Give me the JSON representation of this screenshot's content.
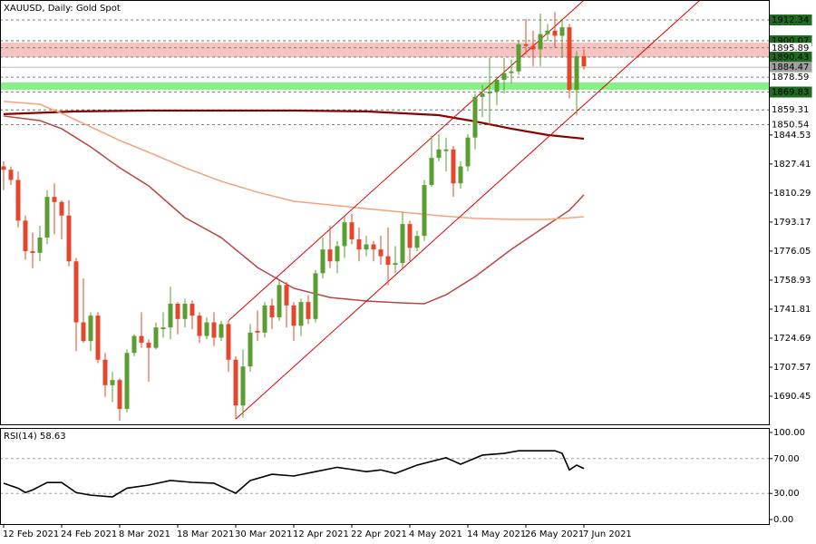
{
  "chart_data": [
    {
      "type": "candlestick",
      "title": "XAUUSD, Daily:  Gold Spot",
      "categories": [
        "12 Feb 2021",
        null,
        null,
        null,
        null,
        null,
        null,
        null,
        "24 Feb 2021",
        null,
        null,
        null,
        null,
        null,
        null,
        null,
        "8 Mar 2021",
        null,
        null,
        null,
        null,
        null,
        null,
        null,
        "18 Mar 2021",
        null,
        null,
        null,
        null,
        null,
        null,
        null,
        "30 Mar 2021",
        null,
        null,
        null,
        null,
        null,
        null,
        null,
        "12 Apr 2021",
        null,
        null,
        null,
        null,
        null,
        null,
        null,
        "22 Apr 2021",
        null,
        null,
        null,
        null,
        null,
        null,
        null,
        "4 May 2021",
        null,
        null,
        null,
        null,
        null,
        null,
        null,
        "14 May 2021",
        null,
        null,
        null,
        null,
        null,
        null,
        null,
        "26 May 2021",
        null,
        null,
        null,
        null,
        null,
        null,
        null,
        "7 Jun 2021"
      ],
      "open": [
        1826,
        1824,
        1818,
        1794,
        1776,
        1775,
        1784,
        1808,
        1805,
        1797,
        1770,
        1734,
        1723,
        1738,
        1712,
        1697,
        1700,
        1683,
        1716,
        1726,
        1722,
        1719,
        1730,
        1731,
        1745,
        1736,
        1745,
        1738,
        1726,
        1734,
        1725,
        1733,
        1712,
        1685,
        1708,
        1729,
        1728,
        1744,
        1737,
        1756,
        1744,
        1732,
        1746,
        1736,
        1763,
        1777,
        1770,
        1779,
        1793,
        1783,
        1777,
        1780,
        1777,
        1773,
        1768,
        1769,
        1792,
        1778,
        1785,
        1815,
        1831,
        1835,
        1836,
        1816,
        1826,
        1843,
        1867,
        1869,
        1870,
        1877,
        1881,
        1882,
        1898,
        1897,
        1895,
        1904,
        1906,
        1903,
        1908,
        1871,
        1891
      ],
      "high": [
        1829,
        1826,
        1823,
        1797,
        1787,
        1791,
        1812,
        1816,
        1806,
        1806,
        1772,
        1760,
        1740,
        1740,
        1716,
        1705,
        1701,
        1718,
        1727,
        1740,
        1724,
        1734,
        1740,
        1755,
        1746,
        1748,
        1747,
        1740,
        1737,
        1740,
        1735,
        1735,
        1714,
        1718,
        1733,
        1741,
        1746,
        1748,
        1759,
        1758,
        1746,
        1748,
        1750,
        1765,
        1784,
        1791,
        1782,
        1797,
        1798,
        1790,
        1785,
        1782,
        1785,
        1790,
        1779,
        1799,
        1794,
        1788,
        1818,
        1844,
        1845,
        1843,
        1838,
        1829,
        1845,
        1869,
        1874,
        1890,
        1879,
        1890,
        1889,
        1900,
        1913,
        1906,
        1916,
        1910,
        1917,
        1913,
        1910,
        1894,
        1895
      ],
      "low": [
        1812,
        1815,
        1790,
        1771,
        1766,
        1770,
        1780,
        1786,
        1783,
        1767,
        1717,
        1722,
        1717,
        1710,
        1690,
        1687,
        1676,
        1681,
        1714,
        1719,
        1699,
        1718,
        1725,
        1724,
        1727,
        1731,
        1730,
        1722,
        1724,
        1720,
        1723,
        1705,
        1677,
        1678,
        1705,
        1723,
        1725,
        1730,
        1735,
        1731,
        1723,
        1726,
        1733,
        1734,
        1760,
        1766,
        1763,
        1772,
        1780,
        1770,
        1773,
        1770,
        1768,
        1756,
        1763,
        1766,
        1770,
        1776,
        1782,
        1814,
        1829,
        1823,
        1808,
        1813,
        1823,
        1836,
        1855,
        1850,
        1862,
        1869,
        1875,
        1880,
        1892,
        1885,
        1885,
        1900,
        1896,
        1890,
        1866,
        1856,
        1883
      ],
      "close": [
        1824,
        1818,
        1794,
        1776,
        1775,
        1784,
        1808,
        1805,
        1797,
        1770,
        1734,
        1723,
        1738,
        1712,
        1697,
        1700,
        1683,
        1716,
        1726,
        1722,
        1719,
        1731,
        1731,
        1745,
        1736,
        1745,
        1738,
        1726,
        1734,
        1725,
        1733,
        1712,
        1685,
        1708,
        1728,
        1728,
        1744,
        1737,
        1756,
        1744,
        1732,
        1746,
        1736,
        1763,
        1777,
        1770,
        1779,
        1793,
        1783,
        1777,
        1780,
        1777,
        1773,
        1768,
        1769,
        1792,
        1778,
        1785,
        1815,
        1831,
        1836,
        1836,
        1816,
        1826,
        1843,
        1867,
        1869,
        1870,
        1877,
        1881,
        1882,
        1898,
        1897,
        1895,
        1904,
        1906,
        1903,
        1908,
        1871,
        1891,
        1885
      ],
      "up_color": "#5a9e32",
      "down_color": "#e5452b",
      "ylim": [
        1673.9,
        1924.1
      ],
      "yticks": [
        1690.45,
        1707.57,
        1724.69,
        1741.81,
        1758.93,
        1776.05,
        1793.17,
        1810.29,
        1827.41,
        1844.53
      ],
      "zones": [
        {
          "low": 1890.4,
          "high": 1899.0,
          "color": "#f7c4c4"
        },
        {
          "low": 1871.2,
          "high": 1875.5,
          "color": "#86f286"
        }
      ],
      "levels": [
        {
          "value": 1912.34,
          "color": "#1f6b1f",
          "text_color": "#ffffff",
          "style": "dashed"
        },
        {
          "value": 1900.07,
          "color": "#1f6b1f",
          "text_color": "#ffffff",
          "style": "dashed"
        },
        {
          "value": 1895.89,
          "color": "#ffffff",
          "text_color": "#000000",
          "style": "dashed"
        },
        {
          "value": 1890.43,
          "color": "#1f6b1f",
          "text_color": "#ffffff",
          "style": "dashed"
        },
        {
          "value": 1884.47,
          "color": "#a0a0a0",
          "text_color": "#ffffff",
          "style": "solid"
        },
        {
          "value": 1878.59,
          "color": "#ffffff",
          "text_color": "#000000",
          "style": "dashed"
        },
        {
          "value": 1869.83,
          "color": "#1f6b1f",
          "text_color": "#ffffff",
          "style": "dashed"
        },
        {
          "value": 1859.31,
          "color": "#ffffff",
          "text_color": "#000000",
          "style": "dashed"
        },
        {
          "value": 1850.54,
          "color": "#ffffff",
          "text_color": "#000000",
          "style": "dashed"
        }
      ],
      "trendlines": [
        {
          "color": "#e00000",
          "x": [
            32,
            96
          ],
          "values": [
            1677,
            1924
          ]
        },
        {
          "color": "#e00000",
          "x": [
            31,
            80
          ],
          "values": [
            1735,
            1924
          ]
        }
      ],
      "overlays": [
        {
          "color": "#8b0000",
          "width": 2.2,
          "x": [
            0,
            10,
            20,
            30,
            40,
            50,
            60,
            65,
            70,
            75,
            80
          ],
          "values": [
            1856.8,
            1858.4,
            1858.9,
            1858.9,
            1858.9,
            1858.4,
            1856.2,
            1852.5,
            1848.2,
            1844.5,
            1842.3
          ]
        },
        {
          "color": "#b84545",
          "width": 1.5,
          "x": [
            0,
            5,
            8,
            12,
            16,
            20,
            25,
            30,
            35,
            40,
            45,
            50,
            55,
            58,
            61,
            65,
            70,
            75,
            78,
            80
          ],
          "values": [
            1855.7,
            1853.0,
            1848.2,
            1837.5,
            1825.2,
            1814.5,
            1795.8,
            1784.0,
            1766.4,
            1754.1,
            1748.7,
            1746.6,
            1745.5,
            1745.0,
            1750.3,
            1761.0,
            1777.1,
            1791.5,
            1800.1,
            1809.2
          ]
        },
        {
          "color": "#f4a47a",
          "width": 1.5,
          "x": [
            0,
            5,
            8,
            12,
            16,
            20,
            25,
            30,
            35,
            40,
            45,
            50,
            55,
            60,
            65,
            70,
            75,
            80
          ],
          "values": [
            1864.3,
            1862.6,
            1857.3,
            1849.3,
            1841.3,
            1834.3,
            1825.2,
            1817.2,
            1810.8,
            1805.4,
            1803.3,
            1801.1,
            1799.0,
            1796.9,
            1795.3,
            1794.7,
            1794.7,
            1796.3
          ]
        }
      ]
    },
    {
      "type": "line",
      "title": "RSI(14)",
      "x": [
        0,
        2,
        3,
        4,
        6,
        8,
        10,
        12,
        15,
        17,
        20,
        23,
        26,
        29,
        32,
        34,
        37,
        40,
        43,
        46,
        50,
        52,
        54,
        57,
        61,
        63,
        66,
        69,
        71,
        74,
        76,
        77,
        78,
        79,
        80
      ],
      "values": [
        41.7,
        36,
        31,
        34,
        42.5,
        42.5,
        31,
        28,
        26,
        36,
        39.6,
        44.8,
        42.7,
        41.7,
        30.2,
        44.8,
        52,
        50,
        55,
        60,
        55,
        57,
        53,
        62.5,
        71,
        63.5,
        74,
        76,
        79,
        79,
        79,
        76,
        57,
        62.5,
        58.63
      ],
      "color": "#000000",
      "ylim": [
        -5.2,
        105.2
      ],
      "yticks": [
        {
          "value": 100,
          "label": "100.00"
        },
        {
          "value": 70,
          "label": "70.00",
          "grid": true
        },
        {
          "value": 30,
          "label": "30.00",
          "grid": true
        },
        {
          "value": 0,
          "label": "0.00"
        }
      ]
    }
  ]
}
